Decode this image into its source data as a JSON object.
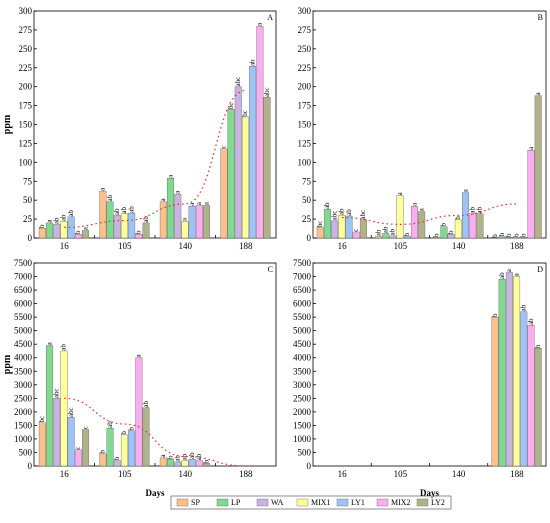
{
  "colors": {
    "SP": "#fbc08d",
    "LP": "#7fd98f",
    "WA": "#c8b4e0",
    "MIX1": "#ffff99",
    "LY1": "#9ec4f7",
    "MIX2": "#f9aef0",
    "LY2": "#b2b28a",
    "trend": "#e8262a",
    "axis": "#000000"
  },
  "legend": [
    "SP",
    "LP",
    "WA",
    "MIX1",
    "LY1",
    "MIX2",
    "LY2"
  ],
  "chart_data": [
    {
      "panel": "A",
      "type": "bar",
      "categories": [
        "16",
        "105",
        "140",
        "188"
      ],
      "ylabel": "ppm",
      "xlabel": "",
      "ylim": [
        0,
        300
      ],
      "yticks": [
        0,
        25,
        50,
        75,
        100,
        125,
        150,
        175,
        200,
        225,
        250,
        275,
        300
      ],
      "series": [
        {
          "name": "SP",
          "values": [
            13,
            62,
            48,
            118
          ]
        },
        {
          "name": "LP",
          "values": [
            20,
            48,
            79,
            170
          ]
        },
        {
          "name": "WA",
          "values": [
            18,
            30,
            58,
            200
          ]
        },
        {
          "name": "MIX1",
          "values": [
            22,
            32,
            22,
            160
          ]
        },
        {
          "name": "LY1",
          "values": [
            28,
            33,
            42,
            227
          ]
        },
        {
          "name": "MIX2",
          "values": [
            5,
            5,
            43,
            280
          ]
        },
        {
          "name": "LY2",
          "values": [
            10,
            20,
            43,
            186
          ]
        }
      ],
      "labels": [
        [
          "b",
          "a",
          "ab",
          "ab",
          "ab",
          "b",
          "a"
        ],
        [
          "a",
          "ab",
          "ab",
          "ab",
          "ab",
          "b",
          "ab"
        ],
        [
          "a",
          "a",
          "a",
          "a",
          "a",
          "a",
          "a"
        ],
        [
          "c",
          "bc",
          "abc",
          "bc",
          "ab",
          "a",
          "abc"
        ]
      ],
      "trend": [
        14,
        23,
        45,
        195
      ]
    },
    {
      "panel": "B",
      "type": "bar",
      "categories": [
        "16",
        "105",
        "140",
        "188"
      ],
      "ylabel": "",
      "xlabel": "",
      "ylim": [
        0,
        300
      ],
      "yticks": [
        0,
        25,
        50,
        75,
        100,
        125,
        150,
        175,
        200,
        225,
        250,
        275,
        300
      ],
      "series": [
        {
          "name": "SP",
          "values": [
            14,
            2,
            1,
            0
          ]
        },
        {
          "name": "LP",
          "values": [
            38,
            6,
            15,
            2
          ]
        },
        {
          "name": "WA",
          "values": [
            23,
            3,
            5,
            1
          ]
        },
        {
          "name": "MIX1",
          "values": [
            30,
            56,
            24,
            1
          ]
        },
        {
          "name": "LY1",
          "values": [
            29,
            2,
            60,
            1
          ]
        },
        {
          "name": "MIX2",
          "values": [
            8,
            42,
            32,
            116
          ]
        },
        {
          "name": "LY2",
          "values": [
            24,
            35,
            32,
            188
          ]
        }
      ],
      "labels": [
        [
          "bc",
          "ab",
          "abc",
          "ab",
          "ab",
          "c",
          "abc"
        ],
        [
          "ab",
          "ab",
          "ab",
          "a",
          "b",
          "a",
          "a"
        ],
        [
          "b",
          "b",
          "b",
          "b",
          "a",
          "ab",
          "ab"
        ],
        [
          "b",
          "b",
          "b",
          "b",
          "b",
          "a",
          "a"
        ]
      ],
      "trend": [
        27,
        18,
        30,
        45
      ]
    },
    {
      "panel": "C",
      "type": "bar",
      "categories": [
        "16",
        "105",
        "140",
        "188"
      ],
      "ylabel": "ppm",
      "xlabel": "Days",
      "ylim": [
        0,
        7500
      ],
      "yticks": [
        0,
        500,
        1000,
        1500,
        2000,
        2500,
        3000,
        3500,
        4000,
        4500,
        5000,
        5500,
        6000,
        6500,
        7000,
        7500
      ],
      "series": [
        {
          "name": "SP",
          "values": [
            1600,
            450,
            300,
            0
          ]
        },
        {
          "name": "LP",
          "values": [
            4450,
            1400,
            250,
            0
          ]
        },
        {
          "name": "WA",
          "values": [
            2500,
            200,
            150,
            0
          ]
        },
        {
          "name": "MIX1",
          "values": [
            4250,
            1150,
            200,
            0
          ]
        },
        {
          "name": "LY1",
          "values": [
            1800,
            1300,
            250,
            0
          ]
        },
        {
          "name": "MIX2",
          "values": [
            600,
            4000,
            200,
            0
          ]
        },
        {
          "name": "LY2",
          "values": [
            1350,
            2150,
            100,
            0
          ]
        }
      ],
      "labels": [
        [
          "bc",
          "a",
          "abc",
          "ab",
          "abc",
          "c",
          "c"
        ],
        [
          "b",
          "ab",
          "b",
          "b",
          "b",
          "a",
          "ab"
        ],
        [
          "a",
          "b",
          "ab",
          "ab",
          "ab",
          "ab",
          "b"
        ],
        [
          "",
          "",
          "",
          "",
          "",
          "",
          ""
        ]
      ],
      "trend": [
        2500,
        1550,
        350,
        0
      ]
    },
    {
      "panel": "D",
      "type": "bar",
      "categories": [
        "16",
        "105",
        "140",
        "188"
      ],
      "ylabel": "",
      "xlabel": "Days",
      "ylim": [
        0,
        7500
      ],
      "yticks": [
        0,
        500,
        1000,
        1500,
        2000,
        2500,
        3000,
        3500,
        4000,
        4500,
        5000,
        5500,
        6000,
        6500,
        7000,
        7500
      ],
      "series": [
        {
          "name": "SP",
          "values": [
            0,
            0,
            0,
            5500
          ]
        },
        {
          "name": "LP",
          "values": [
            0,
            0,
            0,
            6900
          ]
        },
        {
          "name": "WA",
          "values": [
            0,
            0,
            0,
            7150
          ]
        },
        {
          "name": "MIX1",
          "values": [
            0,
            0,
            0,
            7000
          ]
        },
        {
          "name": "LY1",
          "values": [
            0,
            0,
            0,
            5700
          ]
        },
        {
          "name": "MIX2",
          "values": [
            0,
            0,
            0,
            5200
          ]
        },
        {
          "name": "LY2",
          "values": [
            0,
            0,
            0,
            4350
          ]
        }
      ],
      "labels": [
        [
          "",
          "",
          "",
          "",
          "",
          "",
          ""
        ],
        [
          "",
          "",
          "",
          "",
          "",
          "",
          ""
        ],
        [
          "",
          "",
          "",
          "",
          "",
          "",
          ""
        ],
        [
          "b",
          "ab",
          "a",
          "a",
          "ab",
          "ab",
          "b"
        ]
      ],
      "trend": null
    }
  ]
}
